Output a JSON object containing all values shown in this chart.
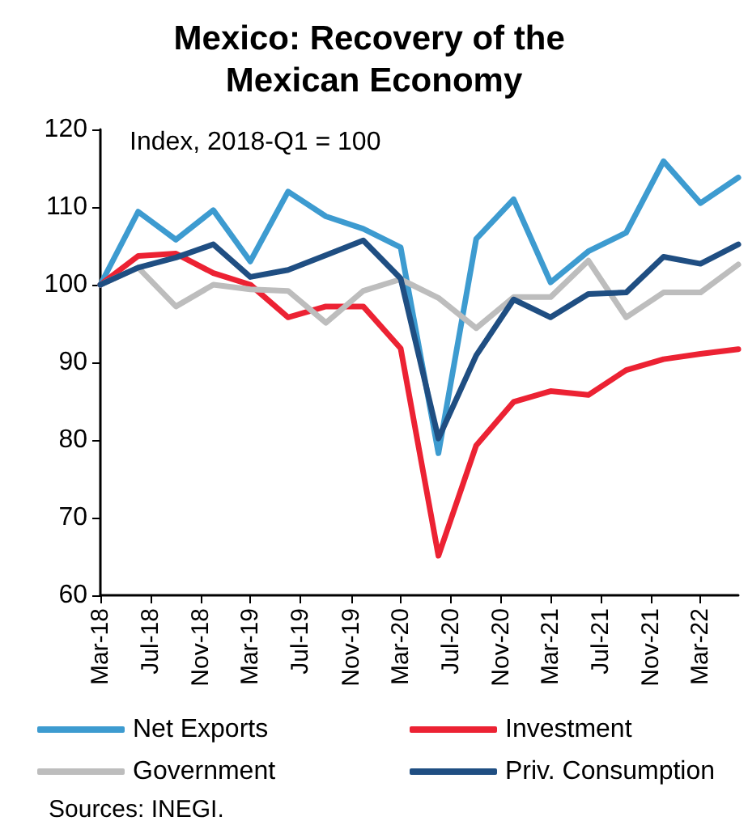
{
  "chart_data": {
    "type": "line",
    "title": "Mexico: Recovery of the Mexican Economy",
    "annotations": [
      "Index, 2018-Q1 = 100",
      "Sources: INEGI."
    ],
    "x": [
      "2018-03",
      "2018-06",
      "2018-09",
      "2018-12",
      "2019-03",
      "2019-06",
      "2019-09",
      "2019-12",
      "2020-03",
      "2020-06",
      "2020-09",
      "2020-12",
      "2021-03",
      "2021-06",
      "2021-09",
      "2021-12",
      "2022-03",
      "2022-06"
    ],
    "series": [
      {
        "name": "Net Exports",
        "color": "#3d9bd0",
        "values": [
          100,
          109.4,
          105.8,
          109.6,
          103,
          112,
          108.8,
          107.2,
          104.8,
          78.3,
          105.9,
          111,
          100.3,
          104.3,
          106.7,
          115.9,
          110.5,
          113.8
        ]
      },
      {
        "name": "Investment",
        "color": "#ec2233",
        "values": [
          100,
          103.7,
          104,
          101.5,
          100,
          95.8,
          97.2,
          97.2,
          91.8,
          65.1,
          79.3,
          84.9,
          86.3,
          85.8,
          89,
          90.4,
          91.1,
          91.7
        ]
      },
      {
        "name": "Government",
        "color": "#bdbdbd",
        "values": [
          100,
          102.2,
          97.2,
          100,
          99.4,
          99.2,
          95.1,
          99.2,
          100.7,
          98.3,
          94.4,
          98.4,
          98.4,
          103.1,
          95.8,
          99,
          99,
          102.6
        ]
      },
      {
        "name": "Priv. Consumption",
        "color": "#1f4e82",
        "values": [
          100,
          102.2,
          103.5,
          105.2,
          101,
          101.9,
          103.8,
          105.7,
          100.8,
          80.2,
          90.9,
          98.1,
          95.8,
          98.8,
          99,
          103.6,
          102.7,
          105.2
        ]
      }
    ],
    "xlim": [
      "2018-03",
      "2022-06"
    ],
    "xticks": [
      {
        "value": "2018-03",
        "label": "Mar-18"
      },
      {
        "value": "2018-07",
        "label": "Jul-18"
      },
      {
        "value": "2018-11",
        "label": "Nov-18"
      },
      {
        "value": "2019-03",
        "label": "Mar-19"
      },
      {
        "value": "2019-07",
        "label": "Jul-19"
      },
      {
        "value": "2019-11",
        "label": "Nov-19"
      },
      {
        "value": "2020-03",
        "label": "Mar-20"
      },
      {
        "value": "2020-07",
        "label": "Jul-20"
      },
      {
        "value": "2020-11",
        "label": "Nov-20"
      },
      {
        "value": "2021-03",
        "label": "Mar-21"
      },
      {
        "value": "2021-07",
        "label": "Jul-21"
      },
      {
        "value": "2021-11",
        "label": "Nov-21"
      },
      {
        "value": "2022-03",
        "label": "Mar-22"
      }
    ],
    "ylim": [
      60,
      120
    ],
    "yticks": [
      60,
      70,
      80,
      90,
      100,
      110,
      120
    ],
    "grid": false,
    "legend": "bottom",
    "marker": "none",
    "line_style": "solid"
  }
}
